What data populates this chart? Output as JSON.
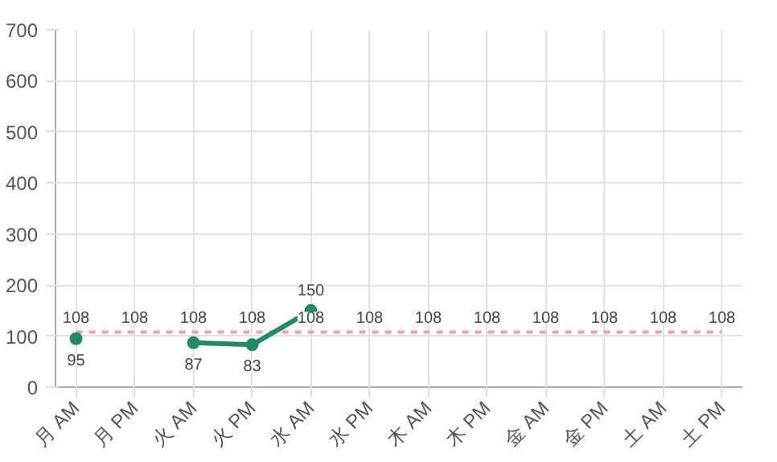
{
  "chart_data": {
    "type": "line",
    "categories": [
      "月 AM",
      "月 PM",
      "火 AM",
      "火 PM",
      "水 AM",
      "水 PM",
      "木 AM",
      "木 PM",
      "金 AM",
      "金 PM",
      "土 AM",
      "土 PM"
    ],
    "series": [
      {
        "color": "#ff9ca8",
        "line_style": "dashed",
        "marker": "none",
        "values": [
          108,
          108,
          108,
          108,
          108,
          108,
          108,
          108,
          108,
          108,
          108,
          108
        ]
      },
      {
        "color": "#218a6a",
        "line_style": "solid",
        "marker": "circle",
        "values": [
          95,
          null,
          87,
          83,
          150,
          null,
          null,
          null,
          null,
          null,
          null,
          null
        ]
      }
    ],
    "ylim": [
      0,
      700
    ],
    "yticks": [
      0,
      100,
      200,
      300,
      400,
      500,
      600,
      700
    ],
    "grid": true,
    "data_labels": true
  }
}
